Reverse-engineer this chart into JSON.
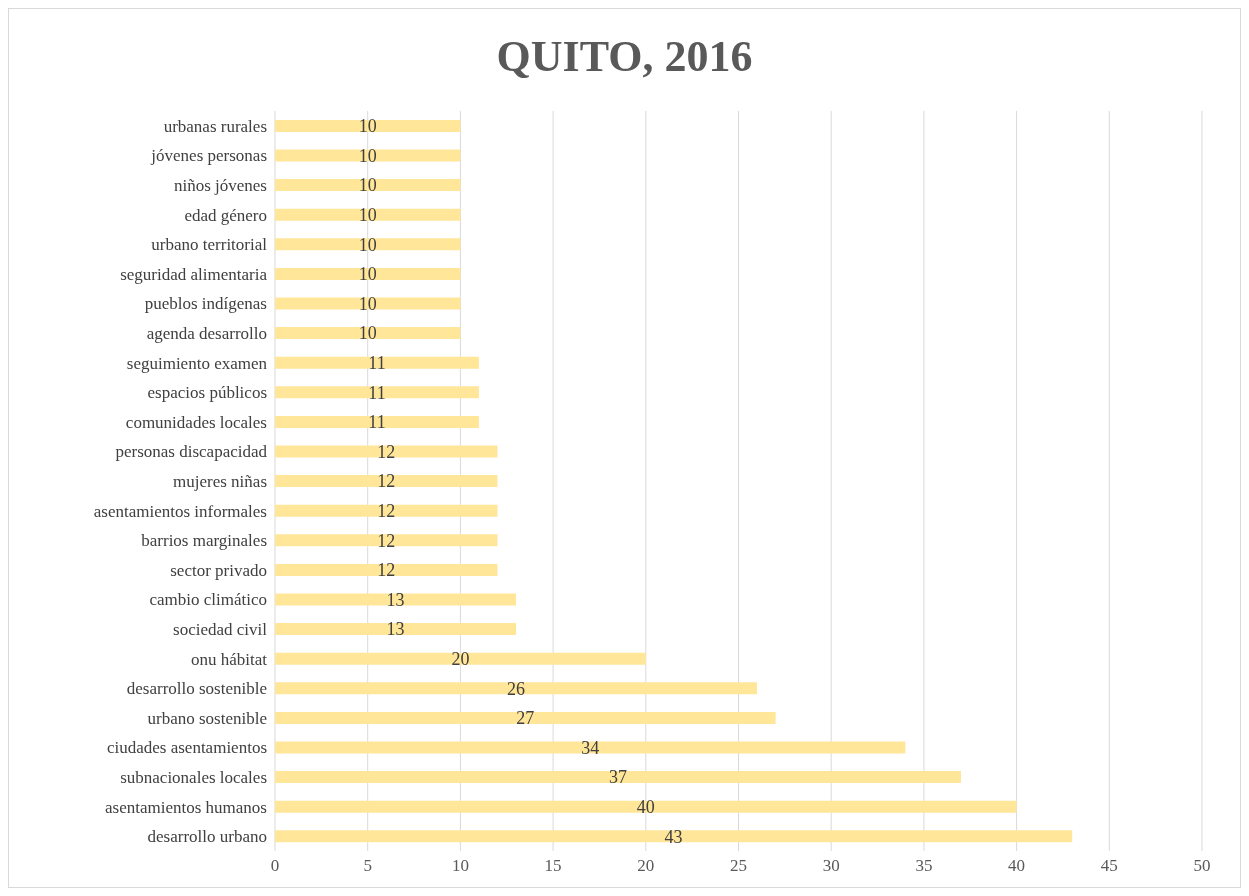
{
  "chart_data": {
    "type": "bar",
    "orientation": "horizontal",
    "title": "QUITO, 2016",
    "categories": [
      "urbanas rurales",
      "jóvenes personas",
      "niños jóvenes",
      "edad género",
      "urbano territorial",
      "seguridad alimentaria",
      "pueblos indígenas",
      "agenda desarrollo",
      "seguimiento examen",
      "espacios públicos",
      "comunidades locales",
      "personas discapacidad",
      "mujeres niñas",
      "asentamientos informales",
      "barrios marginales",
      "sector privado",
      "cambio climático",
      "sociedad civil",
      "onu hábitat",
      "desarrollo sostenible",
      "urbano sostenible",
      "ciudades asentamientos",
      "subnacionales locales",
      "asentamientos humanos",
      "desarrollo urbano"
    ],
    "values": [
      10,
      10,
      10,
      10,
      10,
      10,
      10,
      10,
      11,
      11,
      11,
      12,
      12,
      12,
      12,
      12,
      13,
      13,
      20,
      26,
      27,
      34,
      37,
      40,
      43
    ],
    "color": "#ffe699",
    "xlim": [
      0,
      50
    ],
    "xticks": [
      0,
      5,
      10,
      15,
      20,
      25,
      30,
      35,
      40,
      45,
      50
    ],
    "grid": "x",
    "data_labels": true,
    "legend": false
  }
}
